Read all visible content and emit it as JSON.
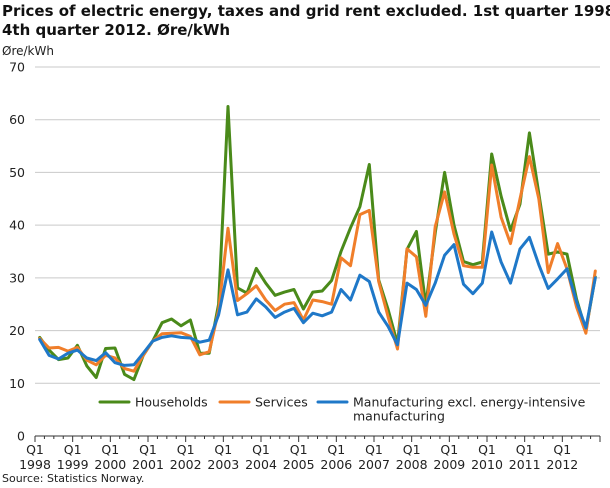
{
  "chart_data": {
    "type": "line",
    "title_lines": [
      "Prices of electric energy, taxes and grid rent excluded. 1st quarter 1998-",
      "4th quarter 2012. Øre/kWh"
    ],
    "ylabel": "Øre/kWh",
    "ylim": [
      0,
      70
    ],
    "yticks": [
      0,
      10,
      20,
      30,
      40,
      50,
      60,
      70
    ],
    "grid": true,
    "legend_position": "bottom",
    "x_tick_labels": [
      {
        "top": "Q1",
        "bottom": "1998"
      },
      {
        "top": "Q1",
        "bottom": "1999"
      },
      {
        "top": "Q1",
        "bottom": "2000"
      },
      {
        "top": "Q1",
        "bottom": "2001"
      },
      {
        "top": "Q1",
        "bottom": "2002"
      },
      {
        "top": "Q1",
        "bottom": "2003"
      },
      {
        "top": "Q1",
        "bottom": "2004"
      },
      {
        "top": "Q1",
        "bottom": "2005"
      },
      {
        "top": "Q1",
        "bottom": "2006"
      },
      {
        "top": "Q1",
        "bottom": "2007"
      },
      {
        "top": "Q1",
        "bottom": "2008"
      },
      {
        "top": "Q1",
        "bottom": "2009"
      },
      {
        "top": "Q1",
        "bottom": "2010"
      },
      {
        "top": "Q1",
        "bottom": "2011"
      },
      {
        "top": "Q1",
        "bottom": "2012"
      }
    ],
    "x": [
      "1998Q1",
      "1998Q2",
      "1998Q3",
      "1998Q4",
      "1999Q1",
      "1999Q2",
      "1999Q3",
      "1999Q4",
      "2000Q1",
      "2000Q2",
      "2000Q3",
      "2000Q4",
      "2001Q1",
      "2001Q2",
      "2001Q3",
      "2001Q4",
      "2002Q1",
      "2002Q2",
      "2002Q3",
      "2002Q4",
      "2003Q1",
      "2003Q2",
      "2003Q3",
      "2003Q4",
      "2004Q1",
      "2004Q2",
      "2004Q3",
      "2004Q4",
      "2005Q1",
      "2005Q2",
      "2005Q3",
      "2005Q4",
      "2006Q1",
      "2006Q2",
      "2006Q3",
      "2006Q4",
      "2007Q1",
      "2007Q2",
      "2007Q3",
      "2007Q4",
      "2008Q1",
      "2008Q2",
      "2008Q3",
      "2008Q4",
      "2009Q1",
      "2009Q2",
      "2009Q3",
      "2009Q4",
      "2010Q1",
      "2010Q2",
      "2010Q3",
      "2010Q4",
      "2011Q1",
      "2011Q2",
      "2011Q3",
      "2011Q4",
      "2012Q1",
      "2012Q2",
      "2012Q3",
      "2012Q4"
    ],
    "series": [
      {
        "name": "Households",
        "color": "#4a8a1a",
        "values": [
          18.7,
          16.3,
          14.5,
          14.8,
          17.2,
          13.3,
          11.1,
          16.6,
          16.7,
          11.7,
          10.7,
          15.3,
          18.0,
          21.5,
          22.2,
          20.9,
          22.0,
          15.7,
          15.7,
          25.0,
          62.5,
          28.1,
          27.1,
          31.8,
          29.0,
          26.7,
          27.3,
          27.8,
          24.1,
          27.3,
          27.5,
          29.5,
          35.0,
          39.5,
          43.5,
          51.5,
          29.6,
          24.0,
          17.5,
          35.4,
          38.8,
          24.8,
          38.5,
          50.0,
          40.0,
          33.1,
          32.5,
          33.0,
          53.5,
          45.5,
          39.0,
          44.0,
          57.5,
          46.0,
          34.5,
          34.9,
          34.5,
          26.0,
          20.0,
          30.2
        ]
      },
      {
        "name": "Services",
        "color": "#f07e2a",
        "values": [
          18.5,
          16.7,
          16.8,
          16.1,
          16.8,
          14.4,
          13.5,
          15.3,
          14.8,
          12.8,
          12.3,
          15.3,
          18.0,
          19.4,
          19.5,
          19.6,
          18.9,
          15.4,
          16.0,
          23.8,
          39.4,
          25.7,
          27.0,
          28.5,
          25.8,
          23.8,
          25.0,
          25.3,
          22.0,
          25.8,
          25.5,
          25.0,
          33.8,
          32.3,
          42.0,
          42.8,
          29.3,
          22.6,
          16.5,
          35.5,
          34.0,
          22.7,
          39.7,
          46.3,
          38.3,
          32.3,
          32.0,
          32.0,
          51.4,
          41.5,
          36.5,
          45.0,
          53.0,
          45.0,
          31.0,
          36.5,
          31.7,
          24.5,
          19.5,
          31.3
        ]
      },
      {
        "name": "Manufacturing excl. energy-intensive manufacturing",
        "color": "#1f78c8",
        "values": [
          18.3,
          15.3,
          14.6,
          15.7,
          16.3,
          14.8,
          14.3,
          15.8,
          13.9,
          13.4,
          13.5,
          15.7,
          18.0,
          18.7,
          19.0,
          18.7,
          18.6,
          17.8,
          18.2,
          23.0,
          31.5,
          23.0,
          23.5,
          26.0,
          24.5,
          22.5,
          23.5,
          24.2,
          21.5,
          23.3,
          22.8,
          23.5,
          27.8,
          25.8,
          30.5,
          29.3,
          23.5,
          20.8,
          17.3,
          29.0,
          27.8,
          24.8,
          29.0,
          34.3,
          36.3,
          28.8,
          27.0,
          29.0,
          38.7,
          33.0,
          29.0,
          35.5,
          37.7,
          32.5,
          28.0,
          29.8,
          31.7,
          25.5,
          20.5,
          30.0
        ]
      }
    ],
    "legend_lines": [
      [
        "Households"
      ],
      [
        "Services"
      ],
      [
        "Manufacturing excl. energy-intensive",
        "manufacturing"
      ]
    ],
    "source": "Source: Statistics Norway."
  }
}
